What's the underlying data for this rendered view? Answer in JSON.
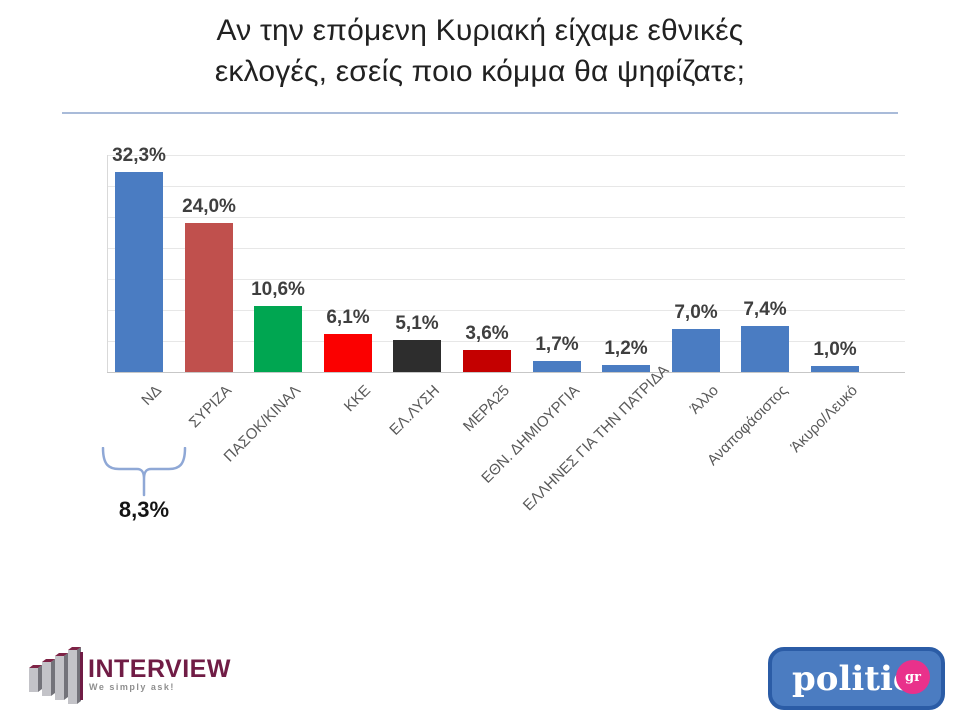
{
  "title": {
    "line1": "Αν την επόμενη Κυριακή είχαμε εθνικές",
    "line2": "εκλογές, εσείς ποιο κόμμα θα ψηφίζατε;"
  },
  "chart_data": {
    "type": "bar",
    "title": "Αν την επόμενη Κυριακή είχαμε εθνικές εκλογές, εσείς ποιο κόμμα θα ψηφίζατε;",
    "categories": [
      "ΝΔ",
      "ΣΥΡΙΖΑ",
      "ΠΑΣΟΚ/ΚΙΝΑΛ",
      "ΚΚΕ",
      "ΕΛ.ΛΥΣΗ",
      "ΜΕΡΑ25",
      "ΕΘΝ. ΔΗΜΙΟΥΡΓΙΑ",
      "ΕΛΛΗΝΕΣ ΓΙΑ ΤΗΝ ΠΑΤΡΙΔΑ",
      "Άλλο",
      "Αναποφάσιστος",
      "Άκυρο/Λευκό"
    ],
    "values": [
      32.3,
      24.0,
      10.6,
      6.1,
      5.1,
      3.6,
      1.7,
      1.2,
      7.0,
      7.4,
      1.0
    ],
    "value_labels": [
      "32,3%",
      "24,0%",
      "10,6%",
      "6,1%",
      "5,1%",
      "3,6%",
      "1,7%",
      "1,2%",
      "7,0%",
      "7,4%",
      "1,0%"
    ],
    "bar_colors": [
      "#4a7cc2",
      "#c0504d",
      "#00a651",
      "#fb0000",
      "#2d2d2d",
      "#c40000",
      "#4a7cc2",
      "#4a7cc2",
      "#4a7cc2",
      "#4a7cc2",
      "#4a7cc2"
    ],
    "xlabel": "",
    "ylabel": "",
    "ylim": [
      0,
      35
    ],
    "gridline_step": 5,
    "grid": true,
    "legend": false,
    "annotation": {
      "label": "8,3%",
      "between": [
        "ΝΔ",
        "ΣΥΡΙΖΑ"
      ]
    }
  },
  "footer": {
    "interview": {
      "name": "INTERVIEW",
      "tagline": "We simply ask!",
      "brand_color": "#701c45"
    },
    "politic": {
      "name": "politic",
      "suffix": "gr",
      "blue": "#4b7cc1",
      "border_blue": "#2b5ca6",
      "pink": "#e9318b"
    }
  },
  "style": {
    "title_rule_color": "#a9bbd9",
    "bracket_color": "#8fa8d6",
    "value_label_color": "#3f3f3f",
    "axis_label_color": "#595959"
  }
}
